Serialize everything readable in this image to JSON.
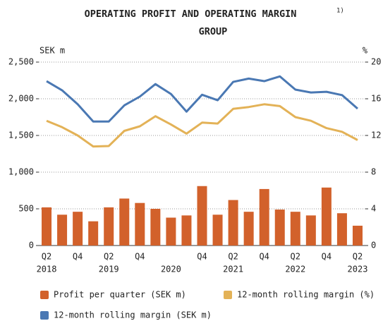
{
  "chart_data": {
    "type": "bar",
    "title": "OPERATING PROFIT AND OPERATING MARGIN",
    "title_note": "1)",
    "subtitle": "GROUP",
    "y_label": "SEK m",
    "y2_label": "%",
    "categories": [
      "Q2",
      null,
      "Q4",
      null,
      "Q2",
      null,
      "Q4",
      null,
      null,
      null,
      "Q4",
      null,
      "Q2",
      null,
      "Q4",
      null,
      "Q2",
      null,
      "Q4",
      null,
      "Q2"
    ],
    "years": [
      "2018",
      null,
      null,
      null,
      "2019",
      null,
      null,
      null,
      "2020",
      null,
      null,
      null,
      "2021",
      null,
      null,
      null,
      "2022",
      null,
      null,
      null,
      "2023"
    ],
    "series": [
      {
        "name": "Profit per quarter (SEK m)",
        "type": "bar",
        "color": "#d2612b",
        "values": [
          520,
          420,
          460,
          330,
          520,
          640,
          580,
          500,
          380,
          410,
          810,
          420,
          620,
          460,
          770,
          490,
          460,
          410,
          790,
          440,
          270
        ]
      },
      {
        "name": "12-month rolling margin (%)",
        "type": "line",
        "axis": "y2",
        "color": "#e3b257",
        "values": [
          13.6,
          12.9,
          12.0,
          10.8,
          10.85,
          12.5,
          13.0,
          14.1,
          13.2,
          12.2,
          13.4,
          13.3,
          14.9,
          15.1,
          15.4,
          15.2,
          14.0,
          13.6,
          12.8,
          12.4,
          11.5
        ]
      },
      {
        "name": "12-month rolling margin (SEK m)",
        "type": "line",
        "color": "#4a78b3",
        "values": [
          2240,
          2115,
          1925,
          1690,
          1690,
          1910,
          2030,
          2200,
          2065,
          1825,
          2055,
          1980,
          2230,
          2275,
          2240,
          2305,
          2125,
          2085,
          2095,
          2050,
          1865
        ]
      }
    ],
    "ylim": [
      0,
      2500
    ],
    "yticks": [
      0,
      500,
      {
        "value": 1000,
        "label": "1,000"
      },
      {
        "value": 1500,
        "label": "1,500"
      },
      {
        "value": 2000,
        "label": "2,000"
      },
      {
        "value": 2500,
        "label": "2,500"
      }
    ],
    "y2lim": [
      0,
      20
    ],
    "y2ticks": [
      0,
      4,
      8,
      12,
      16,
      20
    ],
    "grid": true
  }
}
